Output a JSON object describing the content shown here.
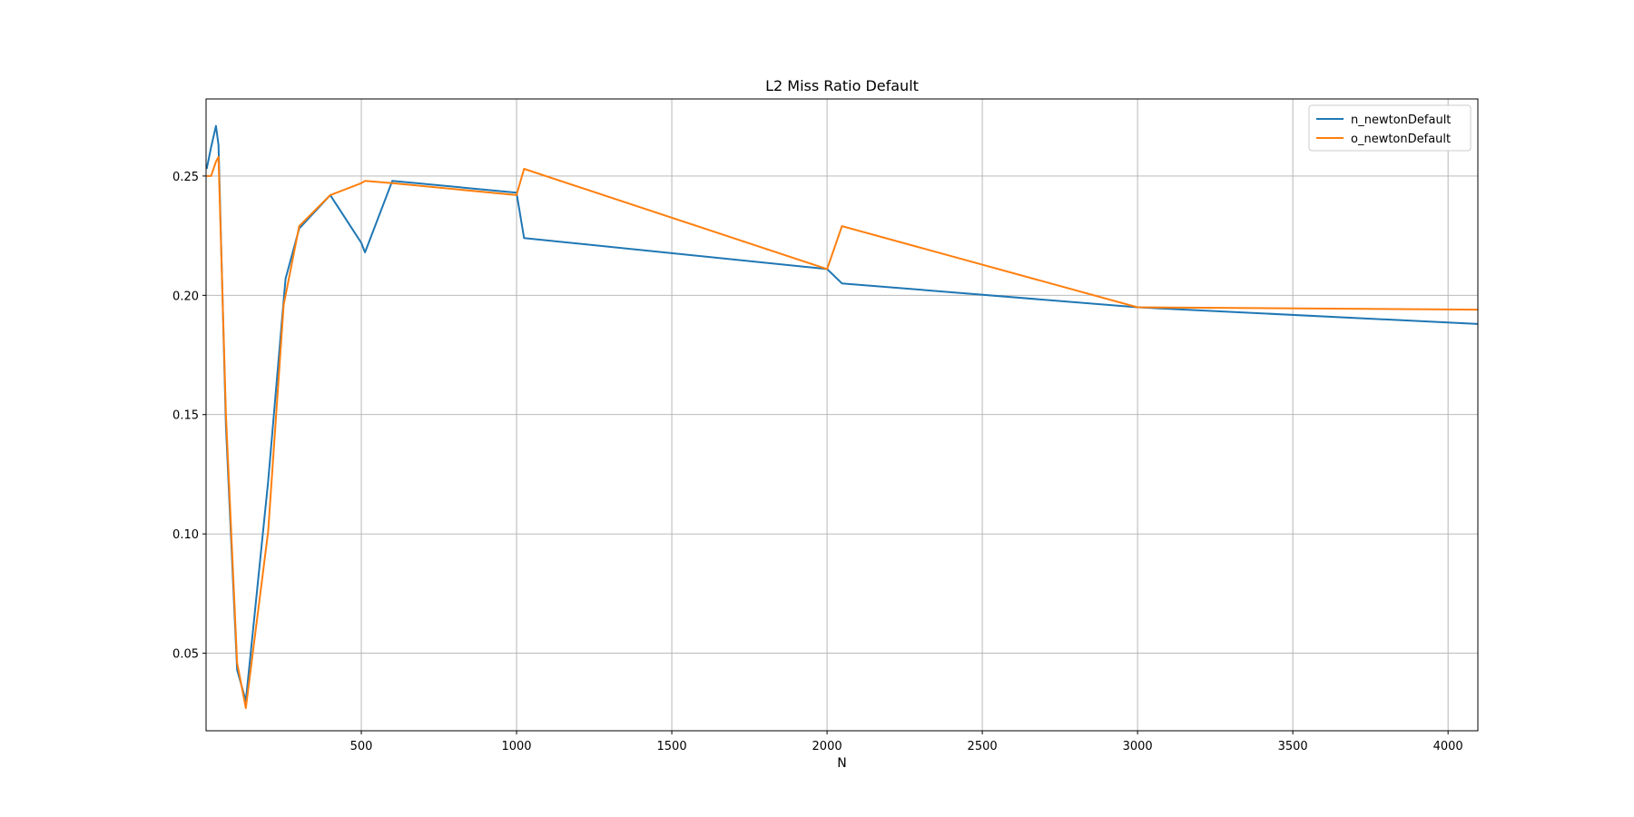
{
  "chart_data": {
    "type": "line",
    "title": "L2 Miss Ratio Default",
    "xlabel": "N",
    "ylabel": "",
    "xlim": [
      0,
      4096
    ],
    "ylim": [
      0.0175,
      0.2823
    ],
    "grid": true,
    "legend_position": "top-right",
    "x_ticks": [
      500,
      1000,
      1500,
      2000,
      2500,
      3000,
      3500,
      4000
    ],
    "x_tick_labels": [
      "500",
      "1000",
      "1500",
      "2000",
      "2500",
      "3000",
      "3500",
      "4000"
    ],
    "y_ticks": [
      0.05,
      0.1,
      0.15,
      0.2,
      0.25
    ],
    "y_tick_labels": [
      "0.05",
      "0.10",
      "0.15",
      "0.20",
      "0.25"
    ],
    "series": [
      {
        "name": "n_newtonDefault",
        "color": "#1f77b4",
        "x": [
          2,
          16,
          32,
          40,
          64,
          100,
          128,
          200,
          250,
          256,
          300,
          400,
          500,
          512,
          600,
          1000,
          1024,
          2000,
          2048,
          3000,
          4096
        ],
        "y": [
          0.253,
          0.262,
          0.271,
          0.263,
          0.145,
          0.043,
          0.03,
          0.122,
          0.198,
          0.207,
          0.228,
          0.242,
          0.222,
          0.218,
          0.248,
          0.243,
          0.224,
          0.211,
          0.205,
          0.195,
          0.188
        ]
      },
      {
        "name": "o_newtonDefault",
        "color": "#ff7f0e",
        "x": [
          2,
          16,
          32,
          40,
          64,
          100,
          128,
          200,
          250,
          256,
          300,
          400,
          500,
          512,
          600,
          1000,
          1024,
          2000,
          2048,
          3000,
          4096
        ],
        "y": [
          0.25,
          0.25,
          0.256,
          0.258,
          0.15,
          0.046,
          0.027,
          0.101,
          0.196,
          0.2,
          0.229,
          0.242,
          0.247,
          0.248,
          0.247,
          0.242,
          0.253,
          0.211,
          0.229,
          0.195,
          0.194
        ]
      }
    ]
  }
}
